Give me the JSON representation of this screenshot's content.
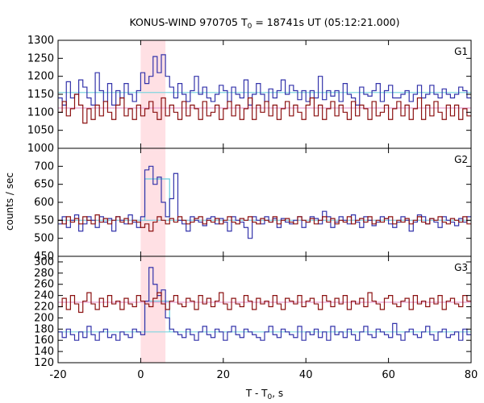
{
  "chart_data": {
    "type": "line",
    "title": "KONUS-WIND 970705 T",
    "title_sub": "0",
    "title_rest": " = 18741s UT (05:12:21.000)",
    "xlabel": "T - T",
    "xlabel_sub": "0",
    "xlabel_rest": ", s",
    "ylabel": "counts / sec",
    "xlim": [
      -20,
      80
    ],
    "x_ticks": [
      -20,
      0,
      20,
      40,
      60,
      80
    ],
    "shaded_interval": [
      0,
      6
    ],
    "colors": {
      "blue_series": "#3333aa",
      "red_series": "#8b1010",
      "blue_background": "#7fd6e0",
      "red_background": "#e6a0d0",
      "burst_mean": "#66ccdd",
      "shading": "#ffe0e4"
    },
    "panels": [
      {
        "label": "G1",
        "ylim": [
          1000,
          1300
        ],
        "y_ticks": [
          1000,
          1050,
          1100,
          1150,
          1200,
          1250,
          1300
        ],
        "blue_background": 1155,
        "red_background": 1112,
        "series": [
          {
            "color_key": "blue_series",
            "x_start": -20,
            "step": 1,
            "values": [
              1140,
              1120,
              1185,
              1140,
              1150,
              1190,
              1170,
              1140,
              1120,
              1210,
              1160,
              1130,
              1180,
              1120,
              1160,
              1140,
              1180,
              1150,
              1130,
              1160,
              1210,
              1180,
              1200,
              1255,
              1210,
              1260,
              1200,
              1170,
              1140,
              1180,
              1150,
              1130,
              1160,
              1200,
              1150,
              1170,
              1140,
              1130,
              1150,
              1175,
              1160,
              1130,
              1170,
              1150,
              1140,
              1190,
              1120,
              1150,
              1180,
              1150,
              1130,
              1165,
              1140,
              1160,
              1190,
              1150,
              1175,
              1160,
              1135,
              1160,
              1130,
              1160,
              1140,
              1200,
              1135,
              1160,
              1145,
              1160,
              1130,
              1180,
              1150,
              1140,
              1120,
              1170,
              1150,
              1145,
              1160,
              1180,
              1130,
              1160,
              1175,
              1140,
              1140,
              1150,
              1160,
              1130,
              1150,
              1175,
              1140,
              1150,
              1175,
              1150,
              1140,
              1165,
              1150,
              1140,
              1150,
              1170,
              1160,
              1140
            ]
          },
          {
            "color_key": "red_series",
            "x_start": -20,
            "step": 1,
            "values": [
              1100,
              1130,
              1090,
              1110,
              1150,
              1120,
              1070,
              1110,
              1080,
              1120,
              1090,
              1130,
              1100,
              1080,
              1120,
              1140,
              1090,
              1110,
              1080,
              1120,
              1090,
              1110,
              1130,
              1100,
              1080,
              1140,
              1090,
              1120,
              1100,
              1080,
              1130,
              1090,
              1120,
              1110,
              1080,
              1130,
              1090,
              1100,
              1120,
              1080,
              1110,
              1130,
              1090,
              1120,
              1080,
              1110,
              1140,
              1080,
              1120,
              1100,
              1130,
              1090,
              1120,
              1080,
              1110,
              1130,
              1090,
              1120,
              1100,
              1080,
              1120,
              1140,
              1090,
              1120,
              1080,
              1110,
              1130,
              1090,
              1120,
              1100,
              1080,
              1130,
              1090,
              1120,
              1110,
              1080,
              1130,
              1090,
              1100,
              1120,
              1080,
              1110,
              1130,
              1090,
              1120,
              1080,
              1110,
              1140,
              1080,
              1120,
              1090,
              1130,
              1100,
              1080,
              1120,
              1090,
              1120,
              1080,
              1110,
              1090
            ]
          }
        ]
      },
      {
        "label": "G2",
        "ylim": [
          450,
          750
        ],
        "y_ticks": [
          450,
          500,
          550,
          600,
          650,
          700
        ],
        "blue_background": 550,
        "red_background": 550,
        "burst_mean": {
          "x_range": [
            1,
            7
          ],
          "value": 665
        },
        "series": [
          {
            "color_key": "blue_series",
            "x_start": -20,
            "step": 1,
            "values": [
              540,
              560,
              530,
              550,
              565,
              520,
              540,
              560,
              550,
              530,
              560,
              545,
              555,
              520,
              560,
              550,
              540,
              565,
              545,
              530,
              560,
              690,
              700,
              650,
              670,
              600,
              560,
              610,
              680,
              550,
              540,
              520,
              560,
              550,
              545,
              535,
              555,
              560,
              540,
              555,
              545,
              520,
              560,
              550,
              545,
              530,
              500,
              560,
              550,
              540,
              560,
              545,
              555,
              530,
              555,
              545,
              540,
              550,
              560,
              530,
              545,
              560,
              555,
              540,
              575,
              560,
              530,
              545,
              560,
              550,
              540,
              565,
              545,
              530,
              560,
              550,
              535,
              545,
              560,
              555,
              540,
              530,
              545,
              560,
              550,
              520,
              545,
              565,
              560,
              540,
              555,
              545,
              530,
              560,
              550,
              545,
              535,
              555,
              545,
              560
            ]
          },
          {
            "color_key": "red_series",
            "x_start": -20,
            "step": 1,
            "values": [
              550,
              540,
              560,
              545,
              555,
              540,
              560,
              550,
              540,
              565,
              545,
              555,
              540,
              550,
              560,
              545,
              555,
              540,
              550,
              545,
              530,
              540,
              520,
              545,
              560,
              550,
              540,
              555,
              545,
              560,
              550,
              540,
              545,
              555,
              560,
              540,
              550,
              545,
              555,
              540,
              550,
              560,
              545,
              540,
              555,
              550,
              560,
              545,
              540,
              555,
              550,
              545,
              560,
              540,
              550,
              555,
              545,
              540,
              560,
              550,
              545,
              555,
              540,
              550,
              560,
              545,
              555,
              540,
              550,
              545,
              560,
              540,
              550,
              555,
              545,
              560,
              540,
              550,
              545,
              555,
              560,
              540,
              550,
              545,
              555,
              540,
              550,
              560,
              545,
              540,
              555,
              550,
              560,
              545,
              540,
              555,
              550,
              545,
              560,
              540
            ]
          }
        ]
      },
      {
        "label": "G3",
        "ylim": [
          120,
          310
        ],
        "y_ticks": [
          120,
          140,
          160,
          180,
          200,
          220,
          240,
          260,
          280,
          300
        ],
        "blue_background": 175,
        "red_background": 228,
        "burst_mean": {
          "x_range": [
            1,
            7
          ],
          "value": 230
        },
        "series": [
          {
            "color_key": "blue_series",
            "x_start": -20,
            "step": 1,
            "values": [
              175,
              165,
              180,
              170,
              160,
              175,
              165,
              185,
              170,
              160,
              175,
              180,
              165,
              170,
              160,
              175,
              170,
              165,
              180,
              175,
              170,
              230,
              290,
              260,
              240,
              250,
              200,
              180,
              175,
              170,
              165,
              180,
              170,
              160,
              175,
              185,
              170,
              165,
              180,
              175,
              160,
              175,
              185,
              170,
              165,
              180,
              175,
              170,
              165,
              160,
              175,
              185,
              170,
              165,
              180,
              175,
              170,
              165,
              185,
              160,
              175,
              170,
              180,
              165,
              175,
              160,
              185,
              170,
              175,
              165,
              180,
              170,
              160,
              175,
              185,
              170,
              165,
              180,
              175,
              170,
              165,
              190,
              170,
              160,
              175,
              180,
              170,
              165,
              175,
              185,
              170,
              160,
              175,
              180,
              165,
              170,
              175,
              160,
              180,
              170
            ]
          },
          {
            "color_key": "red_series",
            "x_start": -20,
            "step": 1,
            "values": [
              220,
              235,
              215,
              240,
              225,
              210,
              230,
              245,
              225,
              215,
              235,
              220,
              240,
              225,
              230,
              215,
              235,
              225,
              220,
              240,
              230,
              225,
              220,
              235,
              245,
              225,
              215,
              230,
              240,
              225,
              220,
              235,
              230,
              215,
              240,
              225,
              235,
              220,
              230,
              245,
              225,
              215,
              235,
              225,
              220,
              240,
              230,
              215,
              235,
              225,
              230,
              220,
              240,
              225,
              215,
              235,
              230,
              225,
              240,
              220,
              230,
              235,
              225,
              215,
              240,
              230,
              220,
              235,
              225,
              240,
              215,
              230,
              225,
              235,
              220,
              245,
              230,
              225,
              215,
              235,
              240,
              225,
              220,
              230,
              235,
              215,
              240,
              225,
              230,
              220,
              235,
              225,
              240,
              215,
              230,
              235,
              225,
              220,
              240,
              230
            ]
          }
        ]
      }
    ]
  }
}
